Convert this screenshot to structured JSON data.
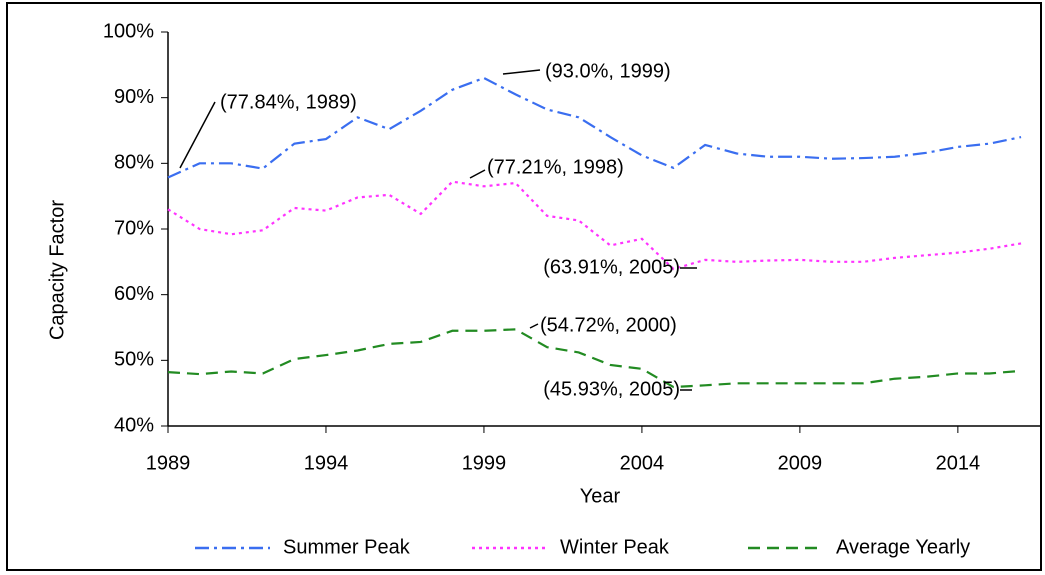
{
  "chart_data": {
    "type": "line",
    "x_label": "Year",
    "y_label": "Capacity Factor",
    "x": [
      1989,
      1990,
      1991,
      1992,
      1993,
      1994,
      1995,
      1996,
      1997,
      1998,
      1999,
      2000,
      2001,
      2002,
      2003,
      2004,
      2005,
      2006,
      2007,
      2008,
      2009,
      2010,
      2011,
      2012,
      2013,
      2014,
      2015,
      2016
    ],
    "series": [
      {
        "name": "Summer Peak",
        "color": "#3a6ef0",
        "dash": "14 5 3 5",
        "values": [
          77.84,
          80,
          80,
          79.2,
          83,
          83.7,
          87,
          85.2,
          88,
          91.2,
          93.0,
          90.5,
          88.2,
          87,
          84,
          81.2,
          79.3,
          82.8,
          81.5,
          81,
          81,
          80.7,
          80.8,
          81,
          81.6,
          82.5,
          83,
          84
        ]
      },
      {
        "name": "Winter Peak",
        "color": "#ff33ff",
        "dash": "3 4",
        "values": [
          73,
          70,
          69.2,
          69.8,
          73.2,
          72.8,
          74.8,
          75.2,
          72.3,
          77.21,
          76.5,
          77,
          72,
          71.3,
          67.5,
          68.5,
          63.91,
          65.3,
          65,
          65.2,
          65.3,
          65,
          65,
          65.6,
          66,
          66.4,
          67,
          67.8
        ]
      },
      {
        "name": "Average Yearly",
        "color": "#228b22",
        "dash": "12 7",
        "values": [
          48.2,
          47.9,
          48.3,
          48,
          50.2,
          50.8,
          51.5,
          52.5,
          52.8,
          54.5,
          54.5,
          54.72,
          52,
          51.2,
          49.3,
          48.7,
          45.93,
          46.2,
          46.5,
          46.5,
          46.5,
          46.5,
          46.5,
          47.2,
          47.5,
          48,
          48,
          48.4
        ]
      }
    ],
    "annotations": [
      "(77.84%, 1989)",
      "(93.0%, 1999)",
      "(77.21%, 1998)",
      "(63.91%, 2005)",
      "(54.72%, 2000)",
      "(45.93%, 2005)"
    ],
    "xlim": [
      1989,
      2016.6
    ],
    "xticks": [
      1989,
      1994,
      1999,
      2004,
      2009,
      2014
    ],
    "ylim": [
      40,
      100
    ],
    "yticks": [
      {
        "value": 40,
        "label": "40%"
      },
      {
        "value": 50,
        "label": "50%"
      },
      {
        "value": 60,
        "label": "60%"
      },
      {
        "value": 70,
        "label": "70%"
      },
      {
        "value": 80,
        "label": "80%"
      },
      {
        "value": 90,
        "label": "90%"
      },
      {
        "value": 100,
        "label": "100%"
      }
    ],
    "grid": false,
    "legend": "bottom"
  }
}
